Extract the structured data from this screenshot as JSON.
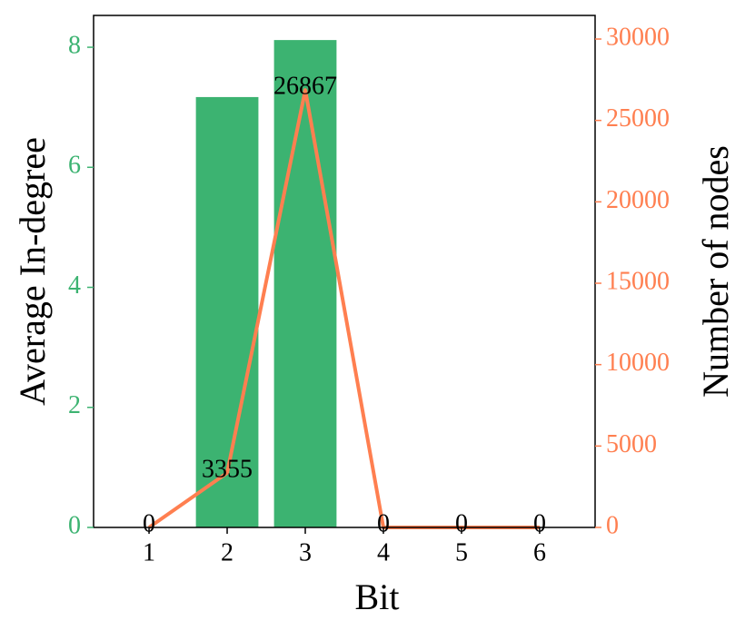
{
  "chart_data": {
    "type": "bar",
    "x_label": "Bit",
    "y_label": "Average In-degree",
    "y2_label": "Number of nodes",
    "x": [
      1,
      2,
      3,
      4,
      5,
      6
    ],
    "xlim": [
      0.29,
      6.71
    ],
    "xticks": [
      1,
      2,
      3,
      4,
      5,
      6
    ],
    "ylim": [
      0,
      8.53
    ],
    "yticks": [
      0,
      2,
      4,
      6,
      8
    ],
    "y2lim": [
      0,
      31450
    ],
    "y2ticks": [
      0,
      5000,
      10000,
      15000,
      20000,
      25000,
      30000
    ],
    "y_color": "#3cb371",
    "y2_color": "#ff7f50",
    "series": [
      {
        "type": "bar",
        "color": "#3cb371",
        "values": [
          0,
          7.17,
          8.12,
          0,
          0,
          0
        ]
      },
      {
        "type": "line",
        "axis": "y2",
        "color": "#ff7f50",
        "values": [
          0,
          3355,
          26867,
          0,
          0,
          0
        ]
      }
    ]
  }
}
